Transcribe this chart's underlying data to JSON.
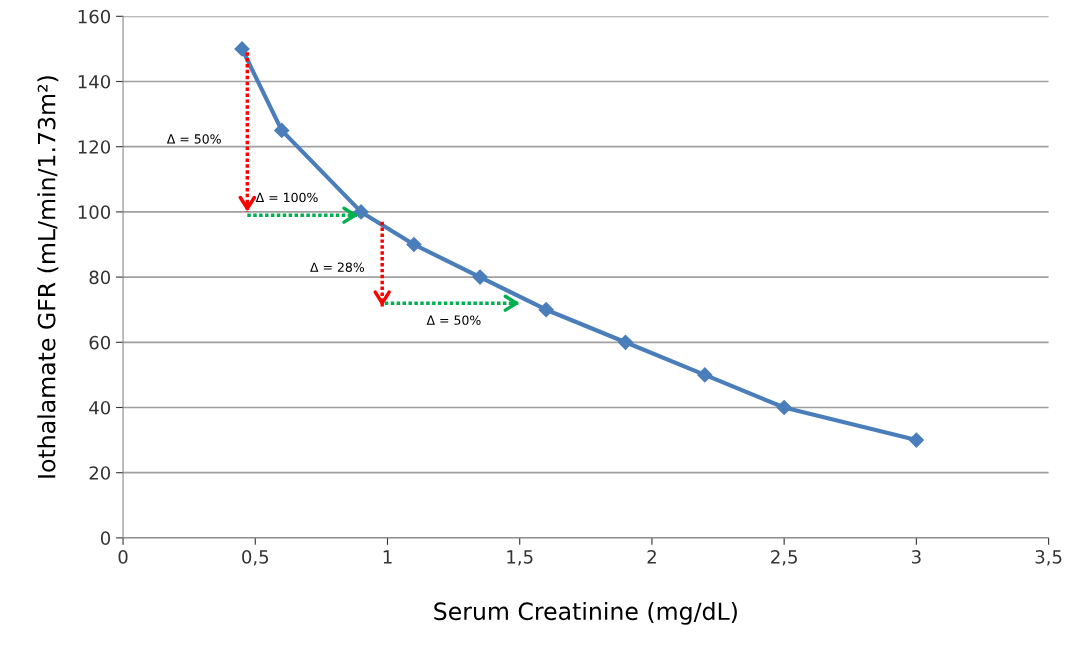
{
  "chart_data": {
    "type": "line",
    "xlabel": "Serum Creatinine (mg/dL)",
    "ylabel": "Iothalamate GFR (mL/min/1.73m²)",
    "xlim": [
      0,
      3.5
    ],
    "ylim": [
      0,
      160
    ],
    "xticks": [
      0,
      {
        "value": 0.5,
        "label": "0,5"
      },
      1,
      {
        "value": 1.5,
        "label": "1,5"
      },
      2,
      {
        "value": 2.5,
        "label": "2,5"
      },
      3,
      {
        "value": 3.5,
        "label": "3,5"
      }
    ],
    "yticks": [
      0,
      20,
      40,
      60,
      80,
      100,
      120,
      140,
      160
    ],
    "grid": "y",
    "marker": "diamond",
    "line_style": "solid",
    "series": [
      {
        "color": "#4a7ebb",
        "x": [
          0.45,
          0.6,
          0.9,
          1.1,
          1.35,
          1.6,
          1.9,
          2.2,
          2.5,
          3.0
        ],
        "values": [
          150,
          125,
          100,
          90,
          80,
          70,
          60,
          50,
          40,
          30
        ]
      },
      {
        "color": "#ff0000",
        "marker": "none",
        "line_style": "dotted",
        "x": [
          0.47,
          0.47
        ],
        "values": [
          149,
          100
        ]
      },
      {
        "color": "#00b050",
        "marker": "none",
        "line_style": "dotted",
        "x": [
          0.47,
          0.89
        ],
        "values": [
          99,
          99
        ]
      },
      {
        "color": "#ff0000",
        "marker": "none",
        "line_style": "dotted",
        "x": [
          0.98,
          0.98
        ],
        "values": [
          97,
          71
        ]
      },
      {
        "color": "#00b050",
        "marker": "none",
        "line_style": "dotted",
        "x": [
          0.99,
          1.5
        ],
        "values": [
          72,
          72
        ]
      }
    ],
    "annotations": [
      "Δ = 50%",
      "Δ = 100%",
      "Δ = 28%",
      "Δ = 50%"
    ]
  }
}
